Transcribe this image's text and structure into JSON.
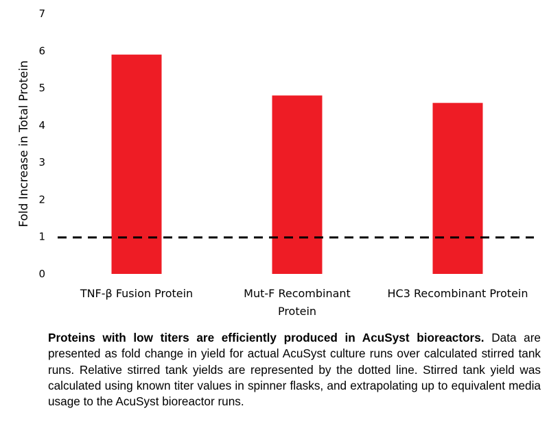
{
  "chart_data": {
    "type": "bar",
    "categories": [
      [
        "TNF-β Fusion Protein"
      ],
      [
        "Mut-F Recombinant",
        "Protein"
      ],
      [
        "HC3 Recombinant Protein"
      ]
    ],
    "values": [
      5.9,
      4.8,
      4.6
    ],
    "ylabel": "Fold Increase in Total Protein",
    "xlabel": "",
    "ylim": [
      0,
      7
    ],
    "yticks": [
      0,
      1,
      2,
      3,
      4,
      5,
      6,
      7
    ],
    "reference_line": {
      "value": 1,
      "style": "dashed"
    },
    "bar_color": "#ee1c25",
    "grid": false
  },
  "caption": {
    "bold": "Proteins with low titers are efficiently produced in AcuSyst bioreactors.",
    "text": " Data are presented as fold change in yield for actual AcuSyst culture runs over calculated stirred tank runs. Relative stirred tank yields are represented by the dotted line. Stirred tank yield was calculated using known titer values in spinner flasks, and extrapolating up to equivalent media usage to the AcuSyst bioreactor runs."
  }
}
